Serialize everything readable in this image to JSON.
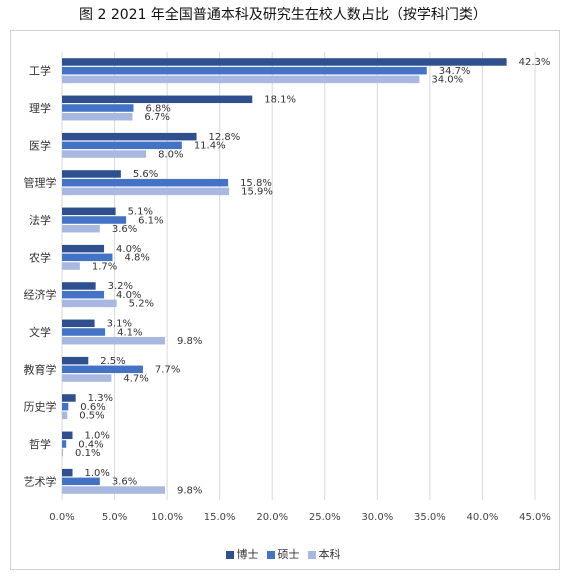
{
  "chart_data": {
    "type": "bar",
    "orientation": "horizontal",
    "title": "图 2 2021 年全国普通本科及研究生在校人数占比（按学科门类）",
    "categories": [
      "工学",
      "理学",
      "医学",
      "管理学",
      "法学",
      "农学",
      "经济学",
      "文学",
      "教育学",
      "历史学",
      "哲学",
      "艺术学"
    ],
    "series": [
      {
        "name": "博士",
        "color": "#2f4f8f",
        "values": [
          42.3,
          18.1,
          12.8,
          5.6,
          5.1,
          4.0,
          3.2,
          3.1,
          2.5,
          1.3,
          1.0,
          1.0
        ]
      },
      {
        "name": "硕士",
        "color": "#4472c4",
        "values": [
          34.7,
          6.8,
          11.4,
          15.8,
          6.1,
          4.8,
          4.0,
          4.1,
          7.7,
          0.6,
          0.4,
          3.6
        ]
      },
      {
        "name": "本科",
        "color": "#a9b8e0",
        "values": [
          34.0,
          6.7,
          8.0,
          15.9,
          3.6,
          1.7,
          5.2,
          9.8,
          4.7,
          0.5,
          0.1,
          9.8
        ]
      }
    ],
    "xlim": [
      0,
      45
    ],
    "xticks": [
      "0.0%",
      "5.0%",
      "10.0%",
      "15.0%",
      "20.0%",
      "25.0%",
      "30.0%",
      "35.0%",
      "40.0%",
      "45.0%"
    ],
    "value_suffix": "%",
    "legend_position": "bottom",
    "grid": "vertical"
  }
}
